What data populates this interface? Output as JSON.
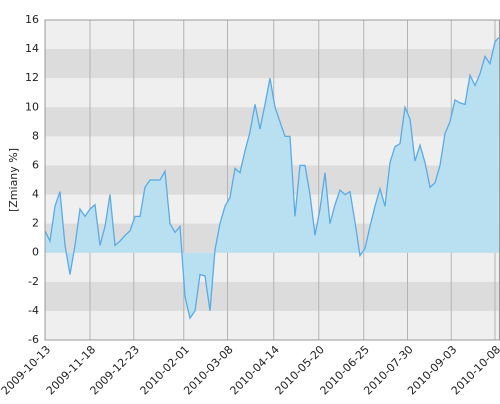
{
  "chart_data": {
    "type": "area",
    "y_label": "[Zmiany %]",
    "x": [
      "2009-10-13",
      "2009-10-17",
      "2009-10-21",
      "2009-10-25",
      "2009-10-29",
      "2009-11-02",
      "2009-11-06",
      "2009-11-10",
      "2009-11-14",
      "2009-11-18",
      "2009-11-22",
      "2009-11-26",
      "2009-11-30",
      "2009-12-04",
      "2009-12-08",
      "2009-12-12",
      "2009-12-16",
      "2009-12-20",
      "2009-12-24",
      "2009-12-28",
      "2010-01-01",
      "2010-01-05",
      "2010-01-09",
      "2010-01-13",
      "2010-01-17",
      "2010-01-21",
      "2010-01-25",
      "2010-01-29",
      "2010-02-02",
      "2010-02-06",
      "2010-02-10",
      "2010-02-14",
      "2010-02-18",
      "2010-02-22",
      "2010-02-26",
      "2010-03-02",
      "2010-03-06",
      "2010-03-10",
      "2010-03-14",
      "2010-03-18",
      "2010-03-22",
      "2010-03-26",
      "2010-03-30",
      "2010-04-03",
      "2010-04-07",
      "2010-04-11",
      "2010-04-15",
      "2010-04-19",
      "2010-04-23",
      "2010-04-27",
      "2010-05-01",
      "2010-05-05",
      "2010-05-09",
      "2010-05-13",
      "2010-05-17",
      "2010-05-21",
      "2010-05-25",
      "2010-05-29",
      "2010-06-02",
      "2010-06-06",
      "2010-06-10",
      "2010-06-14",
      "2010-06-18",
      "2010-06-22",
      "2010-06-26",
      "2010-06-30",
      "2010-07-04",
      "2010-07-08",
      "2010-07-12",
      "2010-07-16",
      "2010-07-20",
      "2010-07-24",
      "2010-07-28",
      "2010-08-01",
      "2010-08-05",
      "2010-08-09",
      "2010-08-13",
      "2010-08-17",
      "2010-08-21",
      "2010-08-25",
      "2010-08-29",
      "2010-09-02",
      "2010-09-06",
      "2010-09-10",
      "2010-09-14",
      "2010-09-18",
      "2010-09-22",
      "2010-09-26",
      "2010-09-30",
      "2010-10-04",
      "2010-10-08",
      "2010-10-11"
    ],
    "values": [
      1.5,
      0.8,
      3.2,
      4.2,
      0.5,
      -1.5,
      0.5,
      3,
      2.5,
      3,
      3.3,
      0.5,
      1.8,
      4,
      0.5,
      0.8,
      1.2,
      1.5,
      2.5,
      2.5,
      4.5,
      5,
      5,
      5,
      5.6,
      2,
      1.4,
      1.8,
      -3,
      -4.5,
      -4,
      -1.5,
      -1.6,
      -4,
      0.2,
      2,
      3.2,
      3.8,
      5.8,
      5.5,
      7,
      8.3,
      10.2,
      8.5,
      10.2,
      12,
      10,
      9,
      8,
      8,
      2.5,
      6,
      6,
      4,
      1.2,
      3,
      5.5,
      2,
      3.3,
      4.3,
      4,
      4.2,
      2.1,
      -0.2,
      0.3,
      1.8,
      3.2,
      4.4,
      3.2,
      6.2,
      7.3,
      7.5,
      10,
      9.2,
      6.3,
      7.4,
      6.2,
      4.5,
      4.8,
      6,
      8.2,
      9,
      10.5,
      10.3,
      10.2,
      12.2,
      11.5,
      12.3,
      13.5,
      13,
      14.5,
      14.8
    ],
    "color": "#5aaae6",
    "area_color": "#b9e0f1",
    "xlim": [
      "2009-10-13",
      "2010-10-12"
    ],
    "xticks": [
      "2009-10-13",
      "2009-11-18",
      "2009-12-23",
      "2010-02-01",
      "2010-03-08",
      "2010-04-14",
      "2010-05-20",
      "2010-06-25",
      "2010-07-30",
      "2010-09-03",
      "2010-10-08"
    ],
    "ylim": [
      -6,
      16
    ],
    "yticks": [
      -6,
      -4,
      -2,
      0,
      2,
      4,
      6,
      8,
      10,
      12,
      14,
      16
    ],
    "grid": true
  }
}
